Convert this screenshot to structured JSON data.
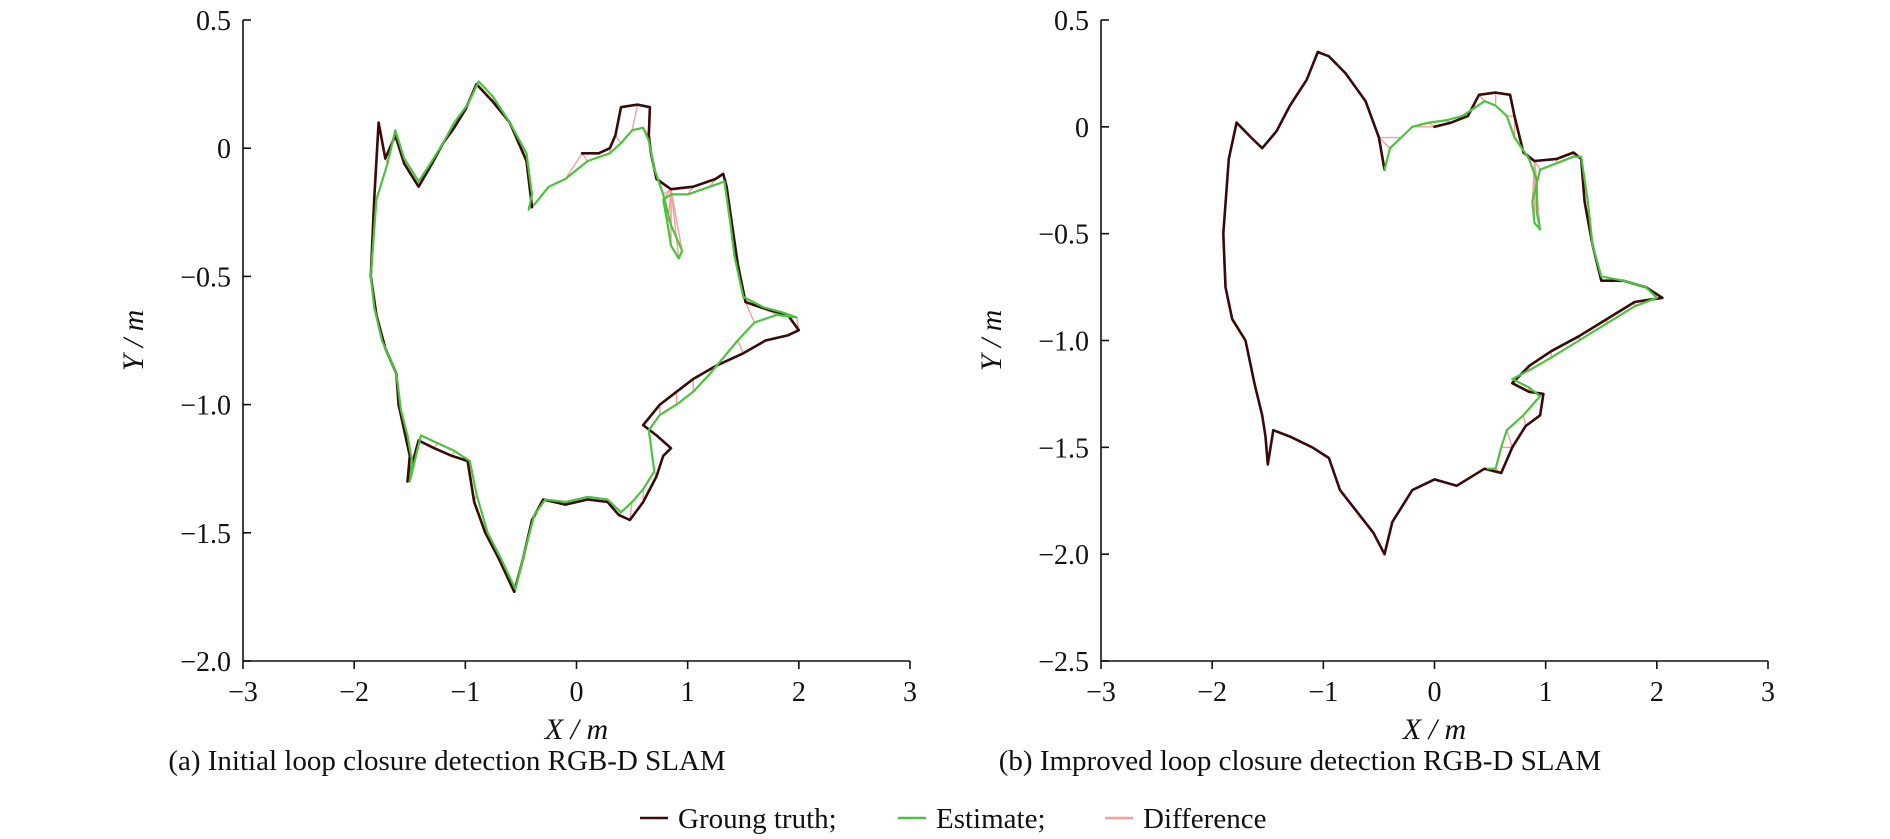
{
  "colors": {
    "ground_truth": "#3a0a0a",
    "estimate": "#4cc23f",
    "difference": "#f2a0a0",
    "axis": "#111111"
  },
  "legend": {
    "items": [
      {
        "key": "ground_truth",
        "label": "Groung truth;"
      },
      {
        "key": "estimate",
        "label": "Estimate;"
      },
      {
        "key": "difference",
        "label": "Difference"
      }
    ]
  },
  "chart_data": [
    {
      "type": "line",
      "caption": "(a) Initial loop closure detection RGB-D SLAM",
      "xlabel": "X / m",
      "ylabel": "Y / m",
      "xlim": [
        -3,
        3
      ],
      "ylim": [
        -2.0,
        0.5
      ],
      "xticks": [
        -3,
        -2,
        -1,
        0,
        1,
        2,
        3
      ],
      "xtick_labels": [
        "−3",
        "−2",
        "−1",
        "0",
        "1",
        "2",
        "3"
      ],
      "yticks": [
        0.5,
        0,
        -0.5,
        -1.0,
        -1.5,
        -2.0
      ],
      "ytick_labels": [
        "0.5",
        "0",
        "−0.5",
        "−1.0",
        "−1.5",
        "−2.0"
      ],
      "series": [
        {
          "name": "Groung truth",
          "key": "ground_truth",
          "points": [
            [
              -0.4,
              -0.23
            ],
            [
              -0.45,
              -0.05
            ],
            [
              -0.6,
              0.1
            ],
            [
              -0.75,
              0.18
            ],
            [
              -0.9,
              0.25
            ],
            [
              -1.0,
              0.15
            ],
            [
              -1.1,
              0.08
            ],
            [
              -1.2,
              0.02
            ],
            [
              -1.3,
              -0.06
            ],
            [
              -1.42,
              -0.15
            ],
            [
              -1.55,
              -0.06
            ],
            [
              -1.63,
              0.05
            ],
            [
              -1.72,
              -0.04
            ],
            [
              -1.78,
              0.1
            ],
            [
              -1.82,
              -0.2
            ],
            [
              -1.85,
              -0.5
            ],
            [
              -1.8,
              -0.65
            ],
            [
              -1.72,
              -0.78
            ],
            [
              -1.62,
              -0.88
            ],
            [
              -1.6,
              -1.0
            ],
            [
              -1.55,
              -1.1
            ],
            [
              -1.5,
              -1.2
            ],
            [
              -1.52,
              -1.3
            ],
            [
              -1.42,
              -1.14
            ],
            [
              -1.28,
              -1.17
            ],
            [
              -1.12,
              -1.2
            ],
            [
              -0.98,
              -1.22
            ],
            [
              -0.92,
              -1.38
            ],
            [
              -0.82,
              -1.5
            ],
            [
              -0.7,
              -1.6
            ],
            [
              -0.56,
              -1.73
            ],
            [
              -0.48,
              -1.6
            ],
            [
              -0.4,
              -1.45
            ],
            [
              -0.3,
              -1.37
            ],
            [
              -0.1,
              -1.39
            ],
            [
              0.1,
              -1.37
            ],
            [
              0.28,
              -1.38
            ],
            [
              0.38,
              -1.43
            ],
            [
              0.48,
              -1.45
            ],
            [
              0.6,
              -1.38
            ],
            [
              0.72,
              -1.28
            ],
            [
              0.78,
              -1.2
            ],
            [
              0.85,
              -1.17
            ],
            [
              0.72,
              -1.12
            ],
            [
              0.6,
              -1.08
            ],
            [
              0.75,
              -1.0
            ],
            [
              0.9,
              -0.95
            ],
            [
              1.05,
              -0.9
            ],
            [
              1.25,
              -0.85
            ],
            [
              1.5,
              -0.8
            ],
            [
              1.7,
              -0.75
            ],
            [
              1.9,
              -0.73
            ],
            [
              2.0,
              -0.71
            ],
            [
              1.9,
              -0.65
            ],
            [
              1.72,
              -0.63
            ],
            [
              1.52,
              -0.6
            ],
            [
              1.45,
              -0.45
            ],
            [
              1.4,
              -0.3
            ],
            [
              1.35,
              -0.15
            ],
            [
              1.32,
              -0.1
            ],
            [
              1.25,
              -0.12
            ],
            [
              1.05,
              -0.15
            ],
            [
              0.85,
              -0.16
            ],
            [
              0.72,
              -0.12
            ],
            [
              0.67,
              -0.02
            ],
            [
              0.65,
              0.05
            ],
            [
              0.66,
              0.16
            ],
            [
              0.55,
              0.17
            ],
            [
              0.4,
              0.16
            ],
            [
              0.35,
              0.05
            ],
            [
              0.3,
              0.0
            ],
            [
              0.2,
              -0.02
            ],
            [
              0.05,
              -0.02
            ]
          ]
        },
        {
          "name": "Estimate",
          "key": "estimate",
          "points": [
            [
              -0.43,
              -0.24
            ],
            [
              -0.4,
              -0.18
            ],
            [
              -0.45,
              -0.02
            ],
            [
              -0.6,
              0.1
            ],
            [
              -0.75,
              0.2
            ],
            [
              -0.88,
              0.26
            ],
            [
              -0.98,
              0.17
            ],
            [
              -1.1,
              0.1
            ],
            [
              -1.2,
              0.02
            ],
            [
              -1.3,
              -0.05
            ],
            [
              -1.42,
              -0.13
            ],
            [
              -1.55,
              -0.04
            ],
            [
              -1.63,
              0.07
            ],
            [
              -1.7,
              -0.06
            ],
            [
              -1.8,
              -0.2
            ],
            [
              -1.85,
              -0.5
            ],
            [
              -1.82,
              -0.62
            ],
            [
              -1.75,
              -0.75
            ],
            [
              -1.62,
              -0.88
            ],
            [
              -1.58,
              -1.02
            ],
            [
              -1.52,
              -1.12
            ],
            [
              -1.48,
              -1.22
            ],
            [
              -1.5,
              -1.3
            ],
            [
              -1.4,
              -1.12
            ],
            [
              -1.25,
              -1.15
            ],
            [
              -1.1,
              -1.18
            ],
            [
              -0.96,
              -1.22
            ],
            [
              -0.9,
              -1.35
            ],
            [
              -0.8,
              -1.5
            ],
            [
              -0.68,
              -1.6
            ],
            [
              -0.55,
              -1.72
            ],
            [
              -0.47,
              -1.58
            ],
            [
              -0.38,
              -1.43
            ],
            [
              -0.28,
              -1.37
            ],
            [
              -0.1,
              -1.38
            ],
            [
              0.1,
              -1.36
            ],
            [
              0.28,
              -1.37
            ],
            [
              0.4,
              -1.42
            ],
            [
              0.5,
              -1.38
            ],
            [
              0.6,
              -1.33
            ],
            [
              0.7,
              -1.26
            ],
            [
              0.65,
              -1.1
            ],
            [
              0.75,
              -1.04
            ],
            [
              0.9,
              -1.0
            ],
            [
              1.05,
              -0.95
            ],
            [
              1.2,
              -0.88
            ],
            [
              1.45,
              -0.75
            ],
            [
              1.6,
              -0.68
            ],
            [
              1.8,
              -0.65
            ],
            [
              1.98,
              -0.66
            ],
            [
              1.85,
              -0.64
            ],
            [
              1.68,
              -0.62
            ],
            [
              1.5,
              -0.58
            ],
            [
              1.42,
              -0.42
            ],
            [
              1.38,
              -0.28
            ],
            [
              1.33,
              -0.13
            ],
            [
              1.2,
              -0.15
            ],
            [
              1.0,
              -0.18
            ],
            [
              0.85,
              -0.18
            ],
            [
              0.78,
              -0.2
            ],
            [
              0.82,
              -0.3
            ],
            [
              0.85,
              -0.38
            ],
            [
              0.92,
              -0.43
            ],
            [
              0.95,
              -0.4
            ],
            [
              0.85,
              -0.3
            ],
            [
              0.78,
              -0.18
            ],
            [
              0.7,
              -0.08
            ],
            [
              0.65,
              0.03
            ],
            [
              0.6,
              0.08
            ],
            [
              0.5,
              0.07
            ],
            [
              0.4,
              0.02
            ],
            [
              0.3,
              -0.02
            ],
            [
              0.1,
              -0.05
            ],
            [
              -0.1,
              -0.12
            ],
            [
              -0.25,
              -0.15
            ],
            [
              -0.38,
              -0.22
            ]
          ]
        }
      ]
    },
    {
      "type": "line",
      "caption": "(b) Improved loop closure detection RGB-D SLAM",
      "xlabel": "X / m",
      "ylabel": "Y / m",
      "xlim": [
        -3,
        3
      ],
      "ylim": [
        -2.5,
        0.5
      ],
      "xticks": [
        -3,
        -2,
        -1,
        0,
        1,
        2,
        3
      ],
      "xtick_labels": [
        "−3",
        "−2",
        "−1",
        "0",
        "1",
        "2",
        "3"
      ],
      "yticks": [
        0.5,
        0,
        -0.5,
        -1.0,
        -1.5,
        -2.0,
        -2.5
      ],
      "ytick_labels": [
        "0.5",
        "0",
        "−0.5",
        "−1.0",
        "−1.5",
        "−2.0",
        "−2.5"
      ],
      "series": [
        {
          "name": "Groung truth",
          "key": "ground_truth",
          "points": [
            [
              -0.45,
              -0.2
            ],
            [
              -0.5,
              -0.05
            ],
            [
              -0.62,
              0.12
            ],
            [
              -0.8,
              0.25
            ],
            [
              -0.95,
              0.33
            ],
            [
              -1.05,
              0.35
            ],
            [
              -1.15,
              0.22
            ],
            [
              -1.3,
              0.1
            ],
            [
              -1.42,
              -0.02
            ],
            [
              -1.55,
              -0.1
            ],
            [
              -1.65,
              -0.05
            ],
            [
              -1.78,
              0.02
            ],
            [
              -1.85,
              -0.15
            ],
            [
              -1.9,
              -0.5
            ],
            [
              -1.88,
              -0.75
            ],
            [
              -1.82,
              -0.9
            ],
            [
              -1.7,
              -1.0
            ],
            [
              -1.62,
              -1.2
            ],
            [
              -1.55,
              -1.35
            ],
            [
              -1.52,
              -1.45
            ],
            [
              -1.5,
              -1.58
            ],
            [
              -1.45,
              -1.42
            ],
            [
              -1.3,
              -1.45
            ],
            [
              -1.1,
              -1.5
            ],
            [
              -0.95,
              -1.55
            ],
            [
              -0.85,
              -1.7
            ],
            [
              -0.7,
              -1.8
            ],
            [
              -0.55,
              -1.9
            ],
            [
              -0.45,
              -2.0
            ],
            [
              -0.38,
              -1.85
            ],
            [
              -0.2,
              -1.7
            ],
            [
              0.0,
              -1.65
            ],
            [
              0.2,
              -1.68
            ],
            [
              0.45,
              -1.6
            ],
            [
              0.6,
              -1.62
            ],
            [
              0.7,
              -1.5
            ],
            [
              0.82,
              -1.4
            ],
            [
              0.95,
              -1.35
            ],
            [
              0.98,
              -1.25
            ],
            [
              0.85,
              -1.24
            ],
            [
              0.7,
              -1.2
            ],
            [
              0.85,
              -1.12
            ],
            [
              1.05,
              -1.05
            ],
            [
              1.3,
              -0.98
            ],
            [
              1.55,
              -0.9
            ],
            [
              1.8,
              -0.82
            ],
            [
              2.05,
              -0.8
            ],
            [
              1.9,
              -0.75
            ],
            [
              1.7,
              -0.72
            ],
            [
              1.5,
              -0.72
            ],
            [
              1.42,
              -0.55
            ],
            [
              1.35,
              -0.35
            ],
            [
              1.32,
              -0.15
            ],
            [
              1.25,
              -0.12
            ],
            [
              1.1,
              -0.15
            ],
            [
              0.9,
              -0.16
            ],
            [
              0.8,
              -0.12
            ],
            [
              0.72,
              0.05
            ],
            [
              0.68,
              0.15
            ],
            [
              0.55,
              0.16
            ],
            [
              0.4,
              0.15
            ],
            [
              0.3,
              0.05
            ],
            [
              0.15,
              0.02
            ],
            [
              0.0,
              0.0
            ]
          ]
        },
        {
          "name": "Estimate",
          "key": "estimate",
          "points": [
            [
              -0.45,
              -0.2
            ],
            [
              -0.4,
              -0.1
            ],
            [
              -0.3,
              -0.05
            ],
            [
              -0.2,
              0.0
            ],
            [
              -0.05,
              0.02
            ],
            [
              0.1,
              0.03
            ],
            [
              0.25,
              0.05
            ],
            [
              0.45,
              0.12
            ],
            [
              0.55,
              0.1
            ],
            [
              0.65,
              0.05
            ],
            [
              0.72,
              -0.05
            ],
            [
              0.85,
              -0.15
            ],
            [
              0.92,
              -0.25
            ],
            [
              0.92,
              -0.4
            ],
            [
              0.95,
              -0.48
            ],
            [
              0.9,
              -0.45
            ],
            [
              0.88,
              -0.35
            ],
            [
              0.95,
              -0.2
            ],
            [
              1.1,
              -0.17
            ],
            [
              1.25,
              -0.14
            ],
            [
              1.32,
              -0.14
            ],
            [
              1.38,
              -0.35
            ],
            [
              1.42,
              -0.55
            ],
            [
              1.5,
              -0.7
            ],
            [
              1.7,
              -0.72
            ],
            [
              1.9,
              -0.75
            ],
            [
              2.0,
              -0.8
            ],
            [
              1.8,
              -0.84
            ],
            [
              1.55,
              -0.92
            ],
            [
              1.3,
              -1.0
            ],
            [
              1.05,
              -1.08
            ],
            [
              0.85,
              -1.14
            ],
            [
              0.7,
              -1.18
            ],
            [
              0.85,
              -1.22
            ],
            [
              0.95,
              -1.26
            ],
            [
              0.8,
              -1.35
            ],
            [
              0.65,
              -1.42
            ],
            [
              0.6,
              -1.5
            ],
            [
              0.55,
              -1.6
            ],
            [
              0.48,
              -1.6
            ]
          ]
        }
      ]
    }
  ]
}
